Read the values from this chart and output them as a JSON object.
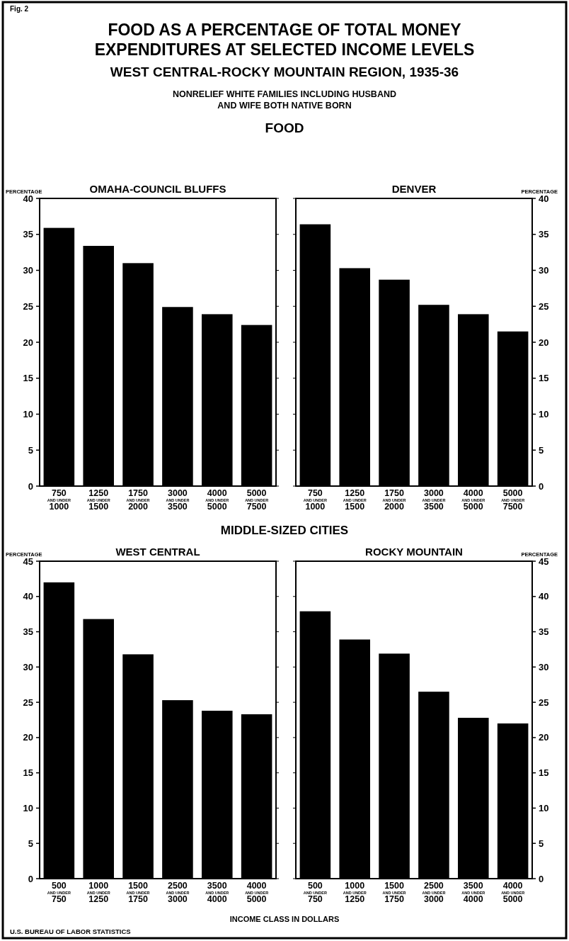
{
  "chart_data": [
    {
      "type": "bar",
      "title": "OMAHA-COUNCIL BLUFFS",
      "ylabel": "PERCENTAGE",
      "categories": [
        "750 AND UNDER 1000",
        "1250 AND UNDER 1500",
        "1750 AND UNDER 2000",
        "3000 AND UNDER 3500",
        "4000 AND UNDER 5000",
        "5000 AND UNDER 7500"
      ],
      "series": [
        {
          "color": "#000000",
          "values": [
            35.9,
            33.4,
            31.0,
            24.9,
            23.9,
            22.4
          ]
        }
      ],
      "ylim": [
        0,
        40
      ],
      "yticks": [
        0,
        5,
        10,
        15,
        20,
        25,
        30,
        35,
        40
      ],
      "annotations": [
        "Fig. 2",
        "FOOD AS A PERCENTAGE OF TOTAL MONEY",
        "EXPENDITURES AT SELECTED INCOME LEVELS",
        "WEST CENTRAL-ROCKY MOUNTAIN REGION, 1935-36",
        "NONRELIEF WHITE FAMILIES INCLUDING HUSBAND",
        "AND WIFE BOTH NATIVE BORN",
        "FOOD"
      ]
    },
    {
      "type": "bar",
      "title": "DENVER",
      "y2label": "PERCENTAGE",
      "categories": [
        "750 AND UNDER 1000",
        "1250 AND UNDER 1500",
        "1750 AND UNDER 2000",
        "3000 AND UNDER 3500",
        "4000 AND UNDER 5000",
        "5000 AND UNDER 7500"
      ],
      "series": [
        {
          "color": "#000000",
          "axis": "y2",
          "values": [
            36.4,
            30.3,
            28.7,
            25.2,
            23.9,
            21.5
          ]
        }
      ],
      "y2lim": [
        0,
        40
      ],
      "y2ticks": [
        0,
        5,
        10,
        15,
        20,
        25,
        30,
        35,
        40
      ]
    },
    {
      "type": "bar",
      "title": "WEST CENTRAL",
      "ylabel": "PERCENTAGE",
      "categories": [
        "500 AND UNDER 750",
        "1000 AND UNDER 1250",
        "1500 AND UNDER 1750",
        "2500 AND UNDER 3000",
        "3500 AND UNDER 4000",
        "4000 AND UNDER 5000"
      ],
      "series": [
        {
          "color": "#000000",
          "values": [
            42.0,
            36.8,
            31.8,
            25.3,
            23.8,
            23.3
          ]
        }
      ],
      "ylim": [
        0,
        45
      ],
      "yticks": [
        0,
        5,
        10,
        15,
        20,
        25,
        30,
        35,
        40,
        45
      ],
      "annotations": [
        "MIDDLE-SIZED CITIES",
        "INCOME CLASS IN DOLLARS",
        "U.S. BUREAU OF LABOR STATISTICS"
      ]
    },
    {
      "type": "bar",
      "title": "ROCKY MOUNTAIN",
      "y2label": "PERCENTAGE",
      "categories": [
        "500 AND UNDER 750",
        "1000 AND UNDER 1250",
        "1500 AND UNDER 1750",
        "2500 AND UNDER 3000",
        "3500 AND UNDER 4000",
        "4000 AND UNDER 5000"
      ],
      "series": [
        {
          "color": "#000000",
          "axis": "y2",
          "values": [
            37.9,
            33.9,
            31.9,
            26.5,
            22.8,
            22.0
          ]
        }
      ],
      "y2lim": [
        0,
        45
      ],
      "y2ticks": [
        0,
        5,
        10,
        15,
        20,
        25,
        30,
        35,
        40,
        45
      ]
    }
  ]
}
